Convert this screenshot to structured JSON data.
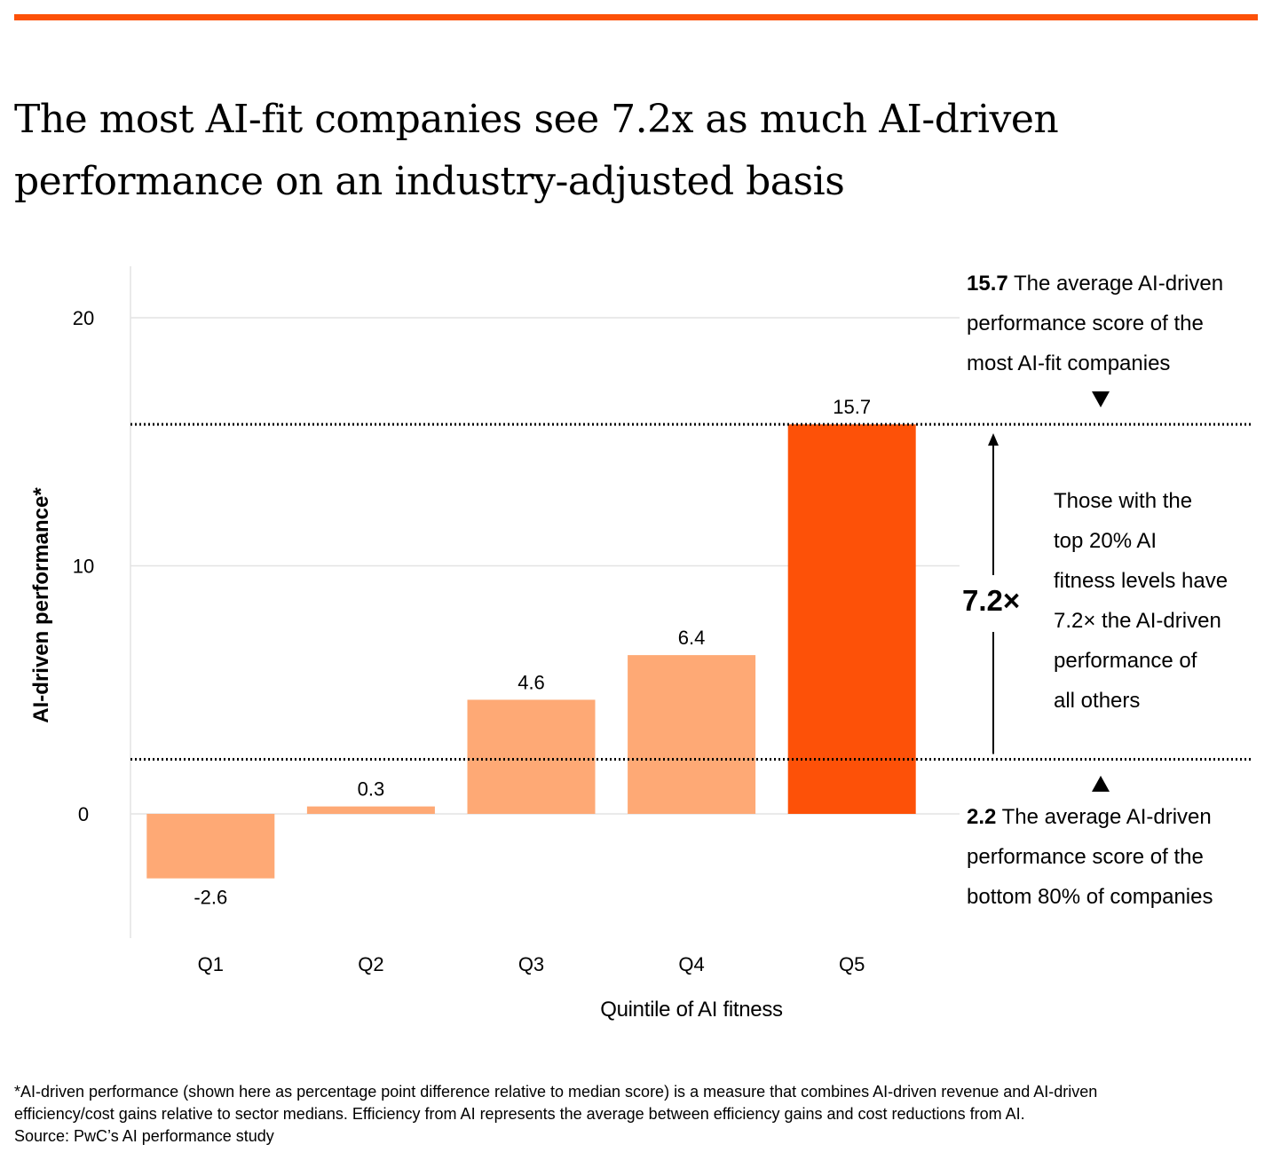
{
  "header": {
    "accent_color": "#fd5108",
    "title_lines": [
      "The most AI-fit companies see 7.2x as much AI-driven",
      "performance on an industry-adjusted basis"
    ]
  },
  "chart_data": {
    "type": "bar",
    "categories": [
      "Q1",
      "Q2",
      "Q3",
      "Q4",
      "Q5"
    ],
    "values": [
      -2.6,
      0.3,
      4.6,
      6.4,
      15.7
    ],
    "value_labels": [
      "-2.6",
      "0.3",
      "4.6",
      "6.4",
      "15.7"
    ],
    "bar_colors": [
      "#fea975",
      "#fea975",
      "#fea975",
      "#fea975",
      "#fd5108"
    ],
    "xlabel": "Quintile of AI fitness",
    "ylabel": "AI-driven performance*",
    "yticks": [
      0,
      10,
      20
    ],
    "ytick_labels": [
      "0",
      "10",
      "20"
    ],
    "ylim": [
      -5,
      22
    ],
    "grid": "horizontal",
    "reference_lines": [
      {
        "value": 15.7,
        "style": "dotted"
      },
      {
        "value": 2.2,
        "style": "dotted"
      }
    ]
  },
  "annotations": {
    "top": {
      "value": "15.7",
      "lines": [
        " The average AI-driven",
        "performance score of the",
        "most AI-fit companies"
      ]
    },
    "bottom": {
      "value": "2.2",
      "lines": [
        " The average AI-driven",
        "performance score of the",
        "bottom 80% of companies"
      ]
    },
    "multiplier": "7.2×",
    "middle_lines": [
      "Those with the",
      "top 20% AI",
      "fitness levels have",
      "7.2× the AI-driven",
      "performance of",
      "all others"
    ]
  },
  "footnote": {
    "lines": [
      "*AI-driven performance (shown here as percentage point difference relative to median score) is a measure that combines AI-driven revenue and AI-driven",
      "efficiency/cost gains relative to sector medians. Efficiency from AI represents the average between efficiency gains and cost reductions from AI.",
      "Source: PwC’s AI performance study"
    ]
  }
}
